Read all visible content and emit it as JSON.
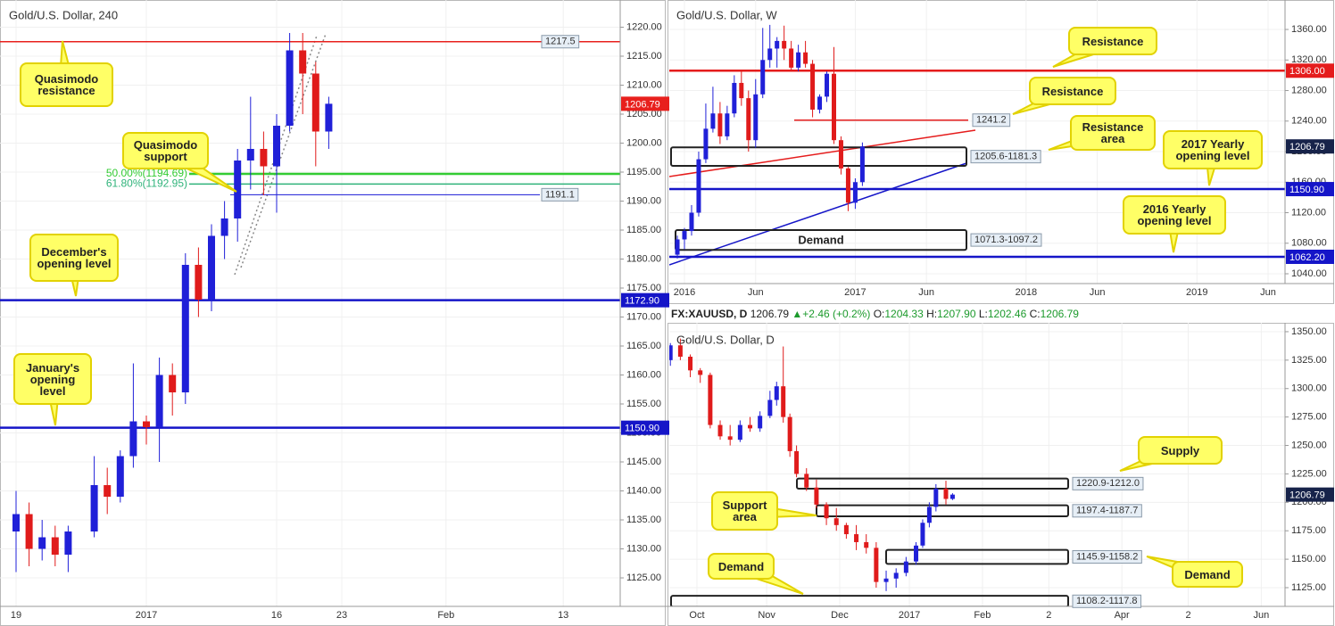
{
  "chart_data": [
    {
      "type": "candlestick",
      "title": "Gold/U.S. Dollar, 240",
      "x": [
        0,
        1,
        2,
        3,
        4,
        6,
        7,
        8,
        9,
        10,
        11,
        12,
        13,
        14,
        15,
        16,
        17,
        18,
        19,
        20,
        21,
        22,
        23,
        24
      ],
      "open": [
        1133,
        1136,
        1130,
        1132,
        1129,
        1133,
        1141,
        1139,
        1146,
        1152,
        1151,
        1160,
        1157,
        1179,
        1173,
        1184,
        1187,
        1197,
        1199,
        1196,
        1203,
        1216,
        1212,
        1202
      ],
      "high": [
        1140,
        1138,
        1135,
        1134,
        1134,
        1146,
        1144,
        1147,
        1162,
        1153,
        1163,
        1162,
        1181,
        1182,
        1186,
        1190,
        1199,
        1208,
        1202,
        1205,
        1219,
        1219,
        1214,
        1208
      ],
      "low": [
        1126,
        1127,
        1128,
        1127,
        1126,
        1132,
        1136,
        1138,
        1144,
        1148,
        1145,
        1153,
        1155,
        1170,
        1171,
        1180,
        1183,
        1192,
        1191,
        1188,
        1202,
        1205,
        1196,
        1199
      ],
      "close": [
        1136,
        1130,
        1132,
        1129,
        1133,
        1141,
        1139,
        1146,
        1152,
        1151,
        1160,
        1157,
        1179,
        1173,
        1184,
        1187,
        1197,
        1199,
        1196,
        1203,
        1216,
        1212,
        1202,
        1206.79
      ],
      "up_color": "#2020d8",
      "down_color": "#e01b1b",
      "xlim": [
        -1.233,
        46.37
      ],
      "ylim": [
        1120.08,
        1224.69
      ],
      "xticks": [
        {
          "value": 0,
          "label": "19"
        },
        {
          "value": 10,
          "label": "2017"
        },
        {
          "value": 20,
          "label": "16"
        },
        {
          "value": 25,
          "label": "23"
        },
        {
          "value": 33,
          "label": "Feb"
        },
        {
          "value": 42,
          "label": "13"
        }
      ],
      "yticks": [
        {
          "value": 1125,
          "label": "1125.00"
        },
        {
          "value": 1130,
          "label": "1130.00"
        },
        {
          "value": 1135,
          "label": "1135.00"
        },
        {
          "value": 1140,
          "label": "1140.00"
        },
        {
          "value": 1145,
          "label": "1145.00"
        },
        {
          "value": 1150,
          "label": "1150.00"
        },
        {
          "value": 1155,
          "label": "1155.00"
        },
        {
          "value": 1160,
          "label": "1160.00"
        },
        {
          "value": 1165,
          "label": "1165.00"
        },
        {
          "value": 1170,
          "label": "1170.00"
        },
        {
          "value": 1175,
          "label": "1175.00"
        },
        {
          "value": 1180,
          "label": "1180.00"
        },
        {
          "value": 1185,
          "label": "1185.00"
        },
        {
          "value": 1190,
          "label": "1190.00"
        },
        {
          "value": 1195,
          "label": "1195.00"
        },
        {
          "value": 1200,
          "label": "1200.00"
        },
        {
          "value": 1205,
          "label": "1205.00"
        },
        {
          "value": 1210,
          "label": "1210.00"
        },
        {
          "value": 1215,
          "label": "1215.00"
        },
        {
          "value": 1220,
          "label": "1220.00"
        }
      ],
      "grid": true,
      "last_price": 1206.79,
      "last_price_color": "#e8201d",
      "levels": [
        {
          "value": 1217.5,
          "color": "#e8201d"
        },
        {
          "value": 1194.69,
          "label": "50.00%(1194.69)",
          "color": "#33cc33"
        },
        {
          "value": 1192.95,
          "label": "61.80%(1192.95)",
          "color": "#2fb37a"
        },
        {
          "value": 1191.1,
          "color": "#1a1ad4"
        },
        {
          "value": 1172.9,
          "label": "1172.90",
          "color": "#1515c8"
        },
        {
          "value": 1150.9,
          "label": "1150.90",
          "color": "#1515c8"
        }
      ],
      "zones": [],
      "annotations": [
        "Quasimodo resistance",
        "Quasimodo support",
        "December's opening level",
        "January's opening level"
      ]
    },
    {
      "type": "candlestick",
      "title": "Gold/U.S. Dollar, W",
      "x": [
        -0.5,
        0,
        0.5,
        1,
        1.5,
        2,
        2.5,
        3,
        3.5,
        4,
        4.5,
        5,
        5.5,
        6,
        6.5,
        7,
        7.5,
        8,
        8.5,
        9,
        9.5,
        10,
        10.5,
        11,
        11.5,
        12,
        12.5
      ],
      "open": [
        1065,
        1085,
        1096,
        1120,
        1190,
        1230,
        1250,
        1220,
        1250,
        1290,
        1270,
        1215,
        1275,
        1320,
        1335,
        1345,
        1335,
        1310,
        1330,
        1315,
        1255,
        1272,
        1302,
        1215,
        1178,
        1133,
        1160
      ],
      "high": [
        1090,
        1100,
        1130,
        1200,
        1263,
        1285,
        1265,
        1260,
        1300,
        1305,
        1280,
        1295,
        1362,
        1366,
        1350,
        1365,
        1345,
        1340,
        1345,
        1320,
        1275,
        1305,
        1337,
        1220,
        1180,
        1165,
        1212
      ],
      "low": [
        1060,
        1072,
        1090,
        1115,
        1185,
        1225,
        1210,
        1215,
        1245,
        1260,
        1200,
        1205,
        1270,
        1310,
        1310,
        1320,
        1305,
        1305,
        1310,
        1245,
        1250,
        1265,
        1210,
        1170,
        1122,
        1125,
        1155
      ],
      "close": [
        1085,
        1096,
        1120,
        1190,
        1230,
        1250,
        1220,
        1250,
        1290,
        1270,
        1215,
        1275,
        1320,
        1335,
        1345,
        1335,
        1310,
        1330,
        1315,
        1255,
        1272,
        1302,
        1215,
        1178,
        1133,
        1160,
        1206.79
      ],
      "up_color": "#2020d8",
      "down_color": "#e01b1b",
      "xlim": [
        -1.066,
        42.19
      ],
      "ylim": [
        1027.15,
        1398.6
      ],
      "xticks": [
        {
          "value": 0,
          "label": "2016"
        },
        {
          "value": 5,
          "label": "Jun"
        },
        {
          "value": 12,
          "label": "2017"
        },
        {
          "value": 17,
          "label": "Jun"
        },
        {
          "value": 24,
          "label": "2018"
        },
        {
          "value": 29,
          "label": "Jun"
        },
        {
          "value": 36,
          "label": "2019"
        },
        {
          "value": 41,
          "label": "Jun"
        }
      ],
      "yticks": [
        {
          "value": 1040,
          "label": "1040.00"
        },
        {
          "value": 1080,
          "label": "1080.00"
        },
        {
          "value": 1120,
          "label": "1120.00"
        },
        {
          "value": 1160,
          "label": "1160.00"
        },
        {
          "value": 1200,
          "label": "1200.00"
        },
        {
          "value": 1240,
          "label": "1240.00"
        },
        {
          "value": 1280,
          "label": "1280.00"
        },
        {
          "value": 1320,
          "label": "1320.00"
        },
        {
          "value": 1360,
          "label": "1360.00"
        }
      ],
      "grid": true,
      "last_price": 1206.79,
      "last_price_color": "#17234a",
      "levels": [
        {
          "value": 1306.0,
          "label": "1306.00",
          "color": "#e51c1c"
        },
        {
          "value": 1241.2,
          "color": "#e51c1c"
        },
        {
          "value": 1150.9,
          "label": "1150.90",
          "color": "#1515c8"
        },
        {
          "value": 1062.2,
          "label": "1062.20",
          "color": "#1515c8"
        }
      ],
      "zones": [
        {
          "range": [
            1205.6,
            1181.3
          ],
          "label": "1205.6-1181.3"
        },
        {
          "range": [
            1071.3,
            1097.2
          ],
          "label": "1071.3-1097.2",
          "name": "Demand"
        }
      ],
      "annotations": [
        "Resistance",
        "Resistance",
        "Resistance area",
        "2017 Yearly opening level",
        "2016 Yearly opening level"
      ]
    },
    {
      "type": "candlestick",
      "title": "Gold/U.S. Dollar, D",
      "x": [
        -8,
        -5,
        -2,
        1,
        4,
        7,
        10,
        13,
        16,
        19,
        22,
        24,
        26,
        28,
        30,
        33,
        36,
        39,
        42,
        45,
        48,
        51,
        54,
        57,
        60,
        63,
        66,
        68,
        70,
        72,
        75,
        77
      ],
      "open": [
        1325,
        1338,
        1328,
        1316,
        1312,
        1268,
        1258,
        1255,
        1268,
        1265,
        1276,
        1290,
        1302,
        1275,
        1245,
        1225,
        1213,
        1198,
        1186,
        1180,
        1172,
        1165,
        1160,
        1130,
        1133,
        1138,
        1148,
        1162,
        1182,
        1196,
        1212,
        1203
      ],
      "high": [
        1340,
        1344,
        1330,
        1318,
        1314,
        1272,
        1268,
        1272,
        1275,
        1280,
        1298,
        1306,
        1337,
        1278,
        1250,
        1230,
        1220,
        1200,
        1195,
        1182,
        1180,
        1172,
        1165,
        1140,
        1142,
        1152,
        1165,
        1185,
        1200,
        1216,
        1219,
        1208
      ],
      "low": [
        1320,
        1325,
        1310,
        1305,
        1265,
        1255,
        1250,
        1253,
        1262,
        1262,
        1274,
        1285,
        1270,
        1240,
        1222,
        1210,
        1195,
        1180,
        1175,
        1168,
        1158,
        1155,
        1125,
        1122,
        1125,
        1135,
        1145,
        1160,
        1178,
        1192,
        1198,
        1202
      ],
      "close": [
        1338,
        1328,
        1316,
        1312,
        1268,
        1258,
        1255,
        1268,
        1265,
        1276,
        1290,
        1302,
        1275,
        1245,
        1225,
        1213,
        1198,
        1186,
        1180,
        1172,
        1165,
        1160,
        1130,
        1133,
        1138,
        1148,
        1162,
        1182,
        1196,
        1212,
        1203,
        1206.79
      ],
      "up_color": "#2020d8",
      "down_color": "#e01b1b",
      "xlim": [
        -8.33,
        177.15
      ],
      "ylim": [
        1108.54,
        1357.8
      ],
      "xticks": [
        {
          "value": 0,
          "label": "Oct"
        },
        {
          "value": 21,
          "label": "Nov"
        },
        {
          "value": 43,
          "label": "Dec"
        },
        {
          "value": 64,
          "label": "2017"
        },
        {
          "value": 86,
          "label": "Feb"
        },
        {
          "value": 106,
          "label": "2"
        },
        {
          "value": 128,
          "label": "Apr"
        },
        {
          "value": 148,
          "label": "2"
        },
        {
          "value": 170,
          "label": "Jun"
        }
      ],
      "yticks": [
        {
          "value": 1125,
          "label": "1125.00"
        },
        {
          "value": 1150,
          "label": "1150.00"
        },
        {
          "value": 1175,
          "label": "1175.00"
        },
        {
          "value": 1200,
          "label": "1200.00"
        },
        {
          "value": 1225,
          "label": "1225.00"
        },
        {
          "value": 1250,
          "label": "1250.00"
        },
        {
          "value": 1275,
          "label": "1275.00"
        },
        {
          "value": 1300,
          "label": "1300.00"
        },
        {
          "value": 1325,
          "label": "1325.00"
        },
        {
          "value": 1350,
          "label": "1350.00"
        }
      ],
      "grid": true,
      "last_price": 1206.79,
      "last_price_color": "#17234a",
      "levels": [],
      "zones": [
        {
          "range": [
            1220.9,
            1212.0
          ],
          "label": "1220.9-1212.0"
        },
        {
          "range": [
            1197.4,
            1187.7
          ],
          "label": "1197.4-1187.7"
        },
        {
          "range": [
            1145.9,
            1158.2
          ],
          "label": "1145.9-1158.2"
        },
        {
          "range": [
            1108.2,
            1117.8
          ],
          "label": "1108.2-1117.8"
        }
      ],
      "annotations": [
        "Supply",
        "Support area",
        "Demand",
        "Demand"
      ]
    }
  ],
  "info_bar": {
    "symbol": "FX:XAUUSD, D",
    "price": "1206.79",
    "change": "▲+2.46 (+0.2%)",
    "ohlc": [
      {
        "label": "O:",
        "value": "1204.33"
      },
      {
        "label": "H:",
        "value": "1207.90"
      },
      {
        "label": "L:",
        "value": "1202.46"
      },
      {
        "label": "C:",
        "value": "1206.79"
      }
    ]
  }
}
